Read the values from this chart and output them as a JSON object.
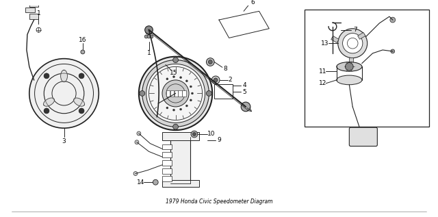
{
  "title": "1979 Honda Civic Speedometer Diagram",
  "bg_color": "#ffffff",
  "line_color": "#222222",
  "fig_width": 6.4,
  "fig_height": 3.17,
  "dpi": 100
}
